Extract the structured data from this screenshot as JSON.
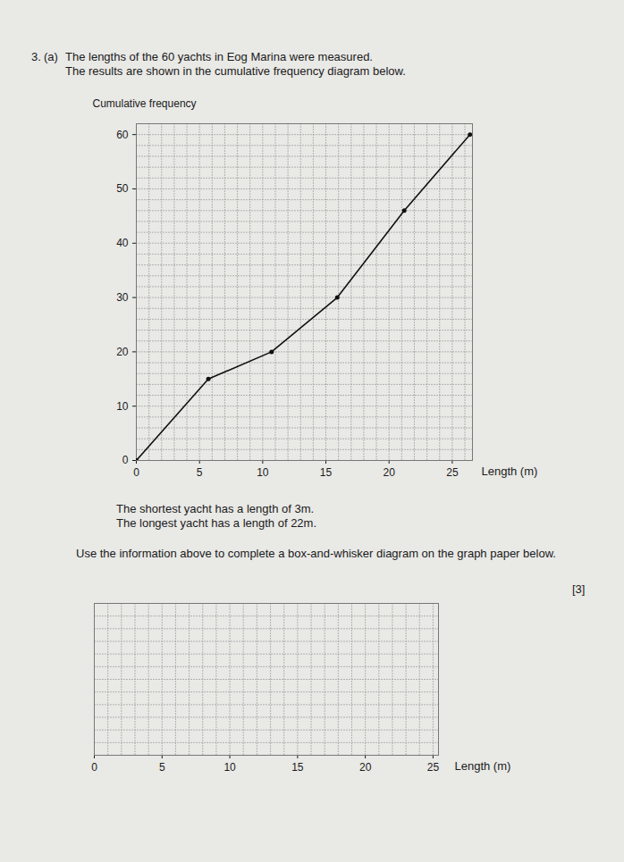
{
  "question": {
    "number": "3.",
    "part": "(a)",
    "lines": [
      "The lengths of the 60 yachts in Eog Marina were measured.",
      "The results are shown in the cumulative frequency diagram below."
    ]
  },
  "chart_data": [
    {
      "type": "line",
      "y_label": "Cumulative frequency",
      "x_label": "Length (m)",
      "x": [
        0,
        5.7,
        10.7,
        15.9,
        21.2,
        26.4
      ],
      "values": [
        0,
        15,
        20,
        30,
        46,
        60
      ],
      "xlim": [
        0,
        26.6
      ],
      "ylim": [
        0,
        62
      ],
      "xticks": [
        0,
        5,
        10,
        15,
        20,
        25
      ],
      "yticks": [
        0,
        10,
        20,
        30,
        40,
        50,
        60
      ],
      "grid": true,
      "marker": "circle",
      "color": "#111111"
    },
    {
      "type": "blank",
      "x_label": "Length (m)",
      "xlim": [
        0,
        25.4
      ],
      "xticks": [
        0,
        5,
        10,
        15,
        20,
        25
      ],
      "grid": true,
      "tick_labels": "x"
    }
  ],
  "info": [
    "The shortest yacht has a length of 3m.",
    "The longest yacht has a length of 22m."
  ],
  "instruction": "Use the information above to complete a box-and-whisker diagram on the graph paper below.",
  "marks": "[3]"
}
